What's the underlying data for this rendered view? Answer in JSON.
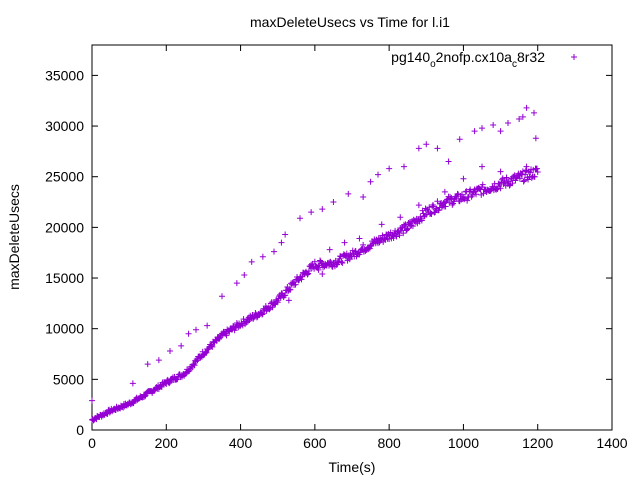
{
  "chart_data": {
    "type": "scatter",
    "title": "maxDeleteUsecs vs Time for l.i1",
    "xlabel": "Time(s)",
    "ylabel": "maxDeleteUsecs",
    "xlim": [
      0,
      1400
    ],
    "ylim": [
      0,
      38000
    ],
    "x_ticks": [
      0,
      200,
      400,
      600,
      800,
      1000,
      1200,
      1400
    ],
    "y_ticks": [
      0,
      5000,
      10000,
      15000,
      20000,
      25000,
      30000,
      35000
    ],
    "legend": {
      "placement": "top-right",
      "label_parts": [
        "pg140",
        "o",
        "2nofp.cx10a",
        "c",
        "8r32"
      ]
    },
    "colors": {
      "series": "#9400d3",
      "axis": "#000000"
    },
    "marker": "plus",
    "series": [
      {
        "name": "pg140_o2nofp.cx10a_c8r32",
        "main_trend": [
          [
            0,
            1000
          ],
          [
            50,
            1900
          ],
          [
            100,
            2600
          ],
          [
            150,
            3600
          ],
          [
            200,
            4700
          ],
          [
            250,
            5600
          ],
          [
            300,
            7600
          ],
          [
            350,
            9300
          ],
          [
            400,
            10500
          ],
          [
            450,
            11500
          ],
          [
            500,
            12800
          ],
          [
            550,
            14700
          ],
          [
            600,
            16300
          ],
          [
            650,
            16500
          ],
          [
            700,
            17300
          ],
          [
            750,
            18300
          ],
          [
            800,
            19200
          ],
          [
            850,
            20000
          ],
          [
            900,
            21500
          ],
          [
            950,
            22500
          ],
          [
            1000,
            23000
          ],
          [
            1050,
            23700
          ],
          [
            1100,
            24300
          ],
          [
            1150,
            24900
          ],
          [
            1200,
            25500
          ]
        ],
        "outliers": [
          [
            0,
            2900
          ],
          [
            110,
            4600
          ],
          [
            150,
            6500
          ],
          [
            180,
            6900
          ],
          [
            210,
            7800
          ],
          [
            240,
            8300
          ],
          [
            260,
            9500
          ],
          [
            280,
            9900
          ],
          [
            310,
            10300
          ],
          [
            350,
            13200
          ],
          [
            390,
            14500
          ],
          [
            410,
            15300
          ],
          [
            430,
            16600
          ],
          [
            460,
            17100
          ],
          [
            490,
            17600
          ],
          [
            510,
            18500
          ],
          [
            520,
            19300
          ],
          [
            560,
            20900
          ],
          [
            590,
            21500
          ],
          [
            620,
            21800
          ],
          [
            650,
            22500
          ],
          [
            690,
            23300
          ],
          [
            730,
            23000
          ],
          [
            750,
            24500
          ],
          [
            770,
            25200
          ],
          [
            800,
            25800
          ],
          [
            840,
            26000
          ],
          [
            880,
            27800
          ],
          [
            900,
            28200
          ],
          [
            930,
            27800
          ],
          [
            960,
            26500
          ],
          [
            990,
            28700
          ],
          [
            1030,
            29500
          ],
          [
            1050,
            29800
          ],
          [
            1080,
            30100
          ],
          [
            1100,
            29500
          ],
          [
            1120,
            30300
          ],
          [
            1150,
            30700
          ],
          [
            1160,
            30900
          ],
          [
            1170,
            31800
          ],
          [
            1190,
            31300
          ],
          [
            1195,
            28800
          ],
          [
            1170,
            26000
          ],
          [
            1100,
            25500
          ],
          [
            1050,
            26000
          ],
          [
            1000,
            24800
          ],
          [
            950,
            23500
          ],
          [
            880,
            22200
          ],
          [
            830,
            21000
          ],
          [
            780,
            20300
          ],
          [
            720,
            18900
          ],
          [
            680,
            18500
          ],
          [
            640,
            17800
          ],
          [
            610,
            15800
          ],
          [
            620,
            15400
          ],
          [
            530,
            12800
          ],
          [
            470,
            12000
          ],
          [
            380,
            10100
          ],
          [
            420,
            10900
          ]
        ]
      }
    ]
  }
}
